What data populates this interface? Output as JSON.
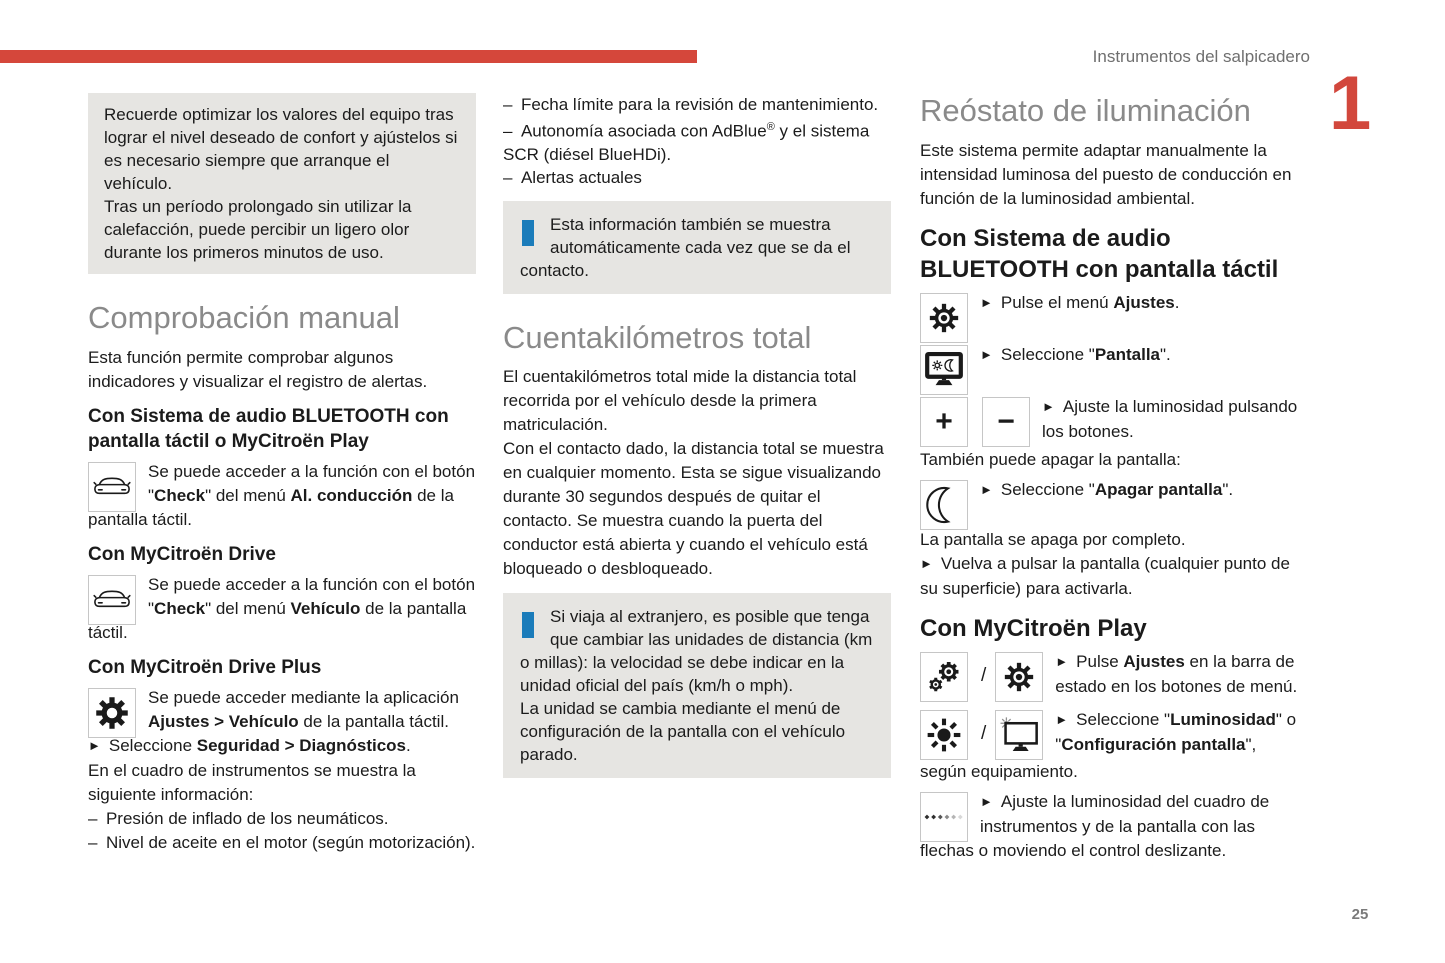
{
  "page": {
    "header": "Instrumentos del salpicadero",
    "chapter_number": "1",
    "page_number": "25"
  },
  "colors": {
    "accent_red": "#d5473b",
    "heading_gray": "#8a8a8a",
    "info_blue": "#1b7cba",
    "box_gray": "#e6e5e2"
  },
  "icons": {
    "arrow_bullet": "►",
    "slash": "/",
    "plus": "+",
    "minus": "−",
    "car": "car-icon",
    "gear": "gear-icon",
    "settings_gear": "settings-gear-icon",
    "display_day_night": "display-day-night-icon",
    "moon": "moon-icon",
    "double_gear": "double-gear-icon",
    "sun": "sun-icon",
    "display_brightness": "display-brightness-icon",
    "brightness_slider": "brightness-slider-icon",
    "info": "info-icon"
  },
  "col1": {
    "note_box": {
      "p1": "Recuerde optimizar los valores del equipo tras lograr el nivel deseado de confort y ajústelos si es necesario siempre que arranque el vehículo.",
      "p2": "Tras un período prolongado sin utilizar la calefacción, puede percibir un ligero olor durante los primeros minutos de uso."
    },
    "title": "Comprobación manual",
    "intro": "Esta función permite comprobar algunos indicadores y visualizar el registro de alertas.",
    "sub1": "Con Sistema de audio BLUETOOTH con pantalla táctil o MyCitroën Play",
    "media1": [
      {
        "t": "Se puede acceder a la función con el botón \""
      },
      {
        "t": "Check",
        "b": true
      },
      {
        "t": "\" del menú "
      },
      {
        "t": "Al. conducción",
        "b": true
      },
      {
        "t": " de la pantalla táctil."
      }
    ],
    "sub2": "Con MyCitroën Drive",
    "media2": [
      {
        "t": "Se puede acceder a la función con el botón \""
      },
      {
        "t": "Check",
        "b": true
      },
      {
        "t": "\" del menú "
      },
      {
        "t": "Vehículo",
        "b": true
      },
      {
        "t": " de la pantalla táctil."
      }
    ],
    "sub3": "Con MyCitroën Drive Plus",
    "media3": [
      {
        "t": "Se puede acceder mediante la aplicación "
      },
      {
        "t": "Ajustes > Vehículo",
        "b": true
      },
      {
        "t": " de la pantalla táctil."
      }
    ],
    "action1": [
      {
        "t": "Seleccione "
      },
      {
        "t": "Seguridad > Diagnósticos",
        "b": true
      },
      {
        "t": "."
      }
    ],
    "outro": "En el cuadro de instrumentos se muestra la siguiente información:",
    "bullet1": "– Presión de inflado de los neumáticos.",
    "bullet2": "– Nivel de aceite en el motor (según motorización)."
  },
  "col2": {
    "bullet1": "– Fecha límite para la revisión de mantenimiento.",
    "bullet2": [
      {
        "t": "– Autonomía asociada con AdBlue"
      },
      {
        "t": "®",
        "sup": true
      },
      {
        "t": " y el sistema SCR (diésel BlueHDi)."
      }
    ],
    "bullet3": "– Alertas actuales",
    "info1": "Esta información también se muestra automáticamente cada vez que se da el contacto.",
    "title": "Cuentakilómetros total",
    "p1": "El cuentakilómetros total mide la distancia total recorrida por el vehículo desde la primera matriculación.",
    "p2": "Con el contacto dado, la distancia total se muestra en cualquier momento. Esta se sigue visualizando durante 30 segundos después de quitar el contacto. Se muestra cuando la puerta del conductor está abierta y cuando el vehículo está bloqueado o desbloqueado.",
    "info2_p1": "Si viaja al extranjero, es posible que tenga que cambiar las unidades de distancia (km o millas): la velocidad se debe indicar en la unidad oficial del país (km/h o mph).",
    "info2_p2": "La unidad se cambia mediante el menú de configuración de la pantalla con el vehículo parado."
  },
  "col3": {
    "title": "Reóstato de iluminación",
    "intro": "Este sistema permite adaptar manualmente la intensidad luminosa del puesto de conducción en función de la luminosidad ambiental.",
    "sub1": "Con Sistema de audio BLUETOOTH con pantalla táctil",
    "step1": [
      {
        "t": "Pulse el menú "
      },
      {
        "t": "Ajustes",
        "b": true
      },
      {
        "t": "."
      }
    ],
    "step2": [
      {
        "t": "Seleccione \""
      },
      {
        "t": "Pantalla",
        "b": true
      },
      {
        "t": "\"."
      }
    ],
    "step3": "Ajuste la luminosidad pulsando los botones.",
    "note1": "También puede apagar la pantalla:",
    "step4": [
      {
        "t": "Seleccione \""
      },
      {
        "t": "Apagar pantalla",
        "b": true
      },
      {
        "t": "\"."
      }
    ],
    "note2": "La pantalla se apaga por completo.",
    "step5": "Vuelva a pulsar la pantalla (cualquier punto de su superficie) para activarla.",
    "sub2": "Con MyCitroën Play",
    "step6": [
      {
        "t": "Pulse "
      },
      {
        "t": "Ajustes",
        "b": true
      },
      {
        "t": " en la barra de estado en los botones de menú."
      }
    ],
    "step7": [
      {
        "t": "Seleccione \""
      },
      {
        "t": "Luminosidad",
        "b": true
      },
      {
        "t": "\" o \""
      },
      {
        "t": "Configuración pantalla",
        "b": true
      },
      {
        "t": "\","
      }
    ],
    "note3": "según equipamiento.",
    "step8": "Ajuste la luminosidad del cuadro de instrumentos y de la pantalla con las flechas o moviendo el control deslizante."
  }
}
